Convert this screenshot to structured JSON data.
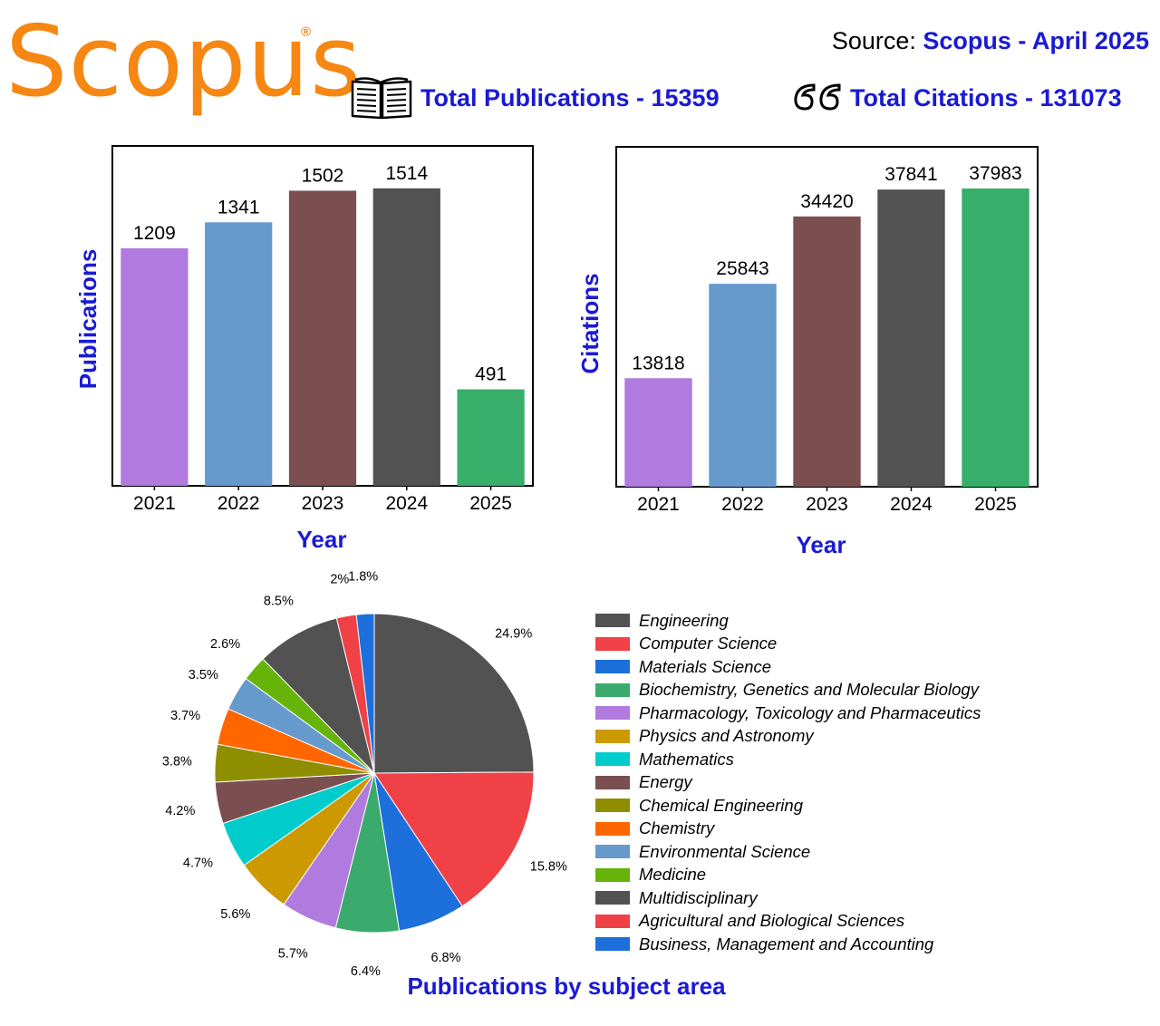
{
  "header": {
    "logo": "Scopus",
    "logo_mark": "®",
    "source_label": "Source:",
    "source_value": "Scopus - April 2025",
    "total_publications": "Total Publications - 15359",
    "total_citations": "Total Citations - 131073",
    "book_icon": "open-book-icon",
    "quote_icon": "quotation-marks-icon"
  },
  "colors": {
    "brand_orange": "#F68712",
    "accent_blue": "#1A1AD4",
    "bars": [
      "#B07ADF",
      "#6699CC",
      "#7B4F4F",
      "#525252",
      "#38AE6B"
    ]
  },
  "pie_title": "Publications by subject area",
  "chart_data": [
    {
      "type": "bar",
      "categories": [
        "2021",
        "2022",
        "2023",
        "2024",
        "2025"
      ],
      "values": [
        1209,
        1341,
        1502,
        1514,
        491
      ],
      "data_labels": [
        "1209",
        "1341",
        "1502",
        "1514",
        "491"
      ],
      "xlabel": "Year",
      "ylabel": "Publications",
      "ylim": [
        0,
        1550
      ],
      "grid": false,
      "legend": "none"
    },
    {
      "type": "bar",
      "categories": [
        "2021",
        "2022",
        "2023",
        "2024",
        "2025"
      ],
      "values": [
        13818,
        25843,
        34420,
        37841,
        37983
      ],
      "data_labels": [
        "13818",
        "25843",
        "34420",
        "37841",
        "37983"
      ],
      "xlabel": "Year",
      "ylabel": "Citations",
      "ylim": [
        0,
        38900
      ],
      "grid": false,
      "legend": "none"
    },
    {
      "type": "pie",
      "title": "Publications by subject area",
      "legend": "right",
      "slices": [
        {
          "label": "Engineering",
          "value": 24.9,
          "text": "24.9%",
          "color": "#525252"
        },
        {
          "label": "Computer Science",
          "value": 15.8,
          "text": "15.8%",
          "color": "#EF4146"
        },
        {
          "label": "Materials Science",
          "value": 6.8,
          "text": "6.8%",
          "color": "#1D6FDC"
        },
        {
          "label": "Biochemistry, Genetics and Molecular Biology",
          "value": 6.4,
          "text": "6.4%",
          "color": "#3AAB6D"
        },
        {
          "label": "Pharmacology, Toxicology and Pharmaceutics",
          "value": 5.7,
          "text": "5.7%",
          "color": "#B07ADF"
        },
        {
          "label": "Physics and Astronomy",
          "value": 5.6,
          "text": "5.6%",
          "color": "#CC9900"
        },
        {
          "label": "Mathematics",
          "value": 4.7,
          "text": "4.7%",
          "color": "#00CCCC"
        },
        {
          "label": "Energy",
          "value": 4.2,
          "text": "4.2%",
          "color": "#7B4F4F"
        },
        {
          "label": "Chemical Engineering",
          "value": 3.8,
          "text": "3.8%",
          "color": "#8E8E00"
        },
        {
          "label": "Chemistry",
          "value": 3.7,
          "text": "3.7%",
          "color": "#FF6600"
        },
        {
          "label": "Environmental Science",
          "value": 3.5,
          "text": "3.5%",
          "color": "#6699CC"
        },
        {
          "label": "Medicine",
          "value": 2.6,
          "text": "2.6%",
          "color": "#66B30A"
        },
        {
          "label": "Multidisciplinary",
          "value": 8.5,
          "text": "8.5%",
          "color": "#525252"
        },
        {
          "label": "Agricultural and Biological Sciences",
          "value": 2.0,
          "text": "2%",
          "color": "#EF4146"
        },
        {
          "label": "Business, Management and Accounting",
          "value": 1.8,
          "text": "1.8%",
          "color": "#1D6FDC"
        }
      ]
    }
  ]
}
